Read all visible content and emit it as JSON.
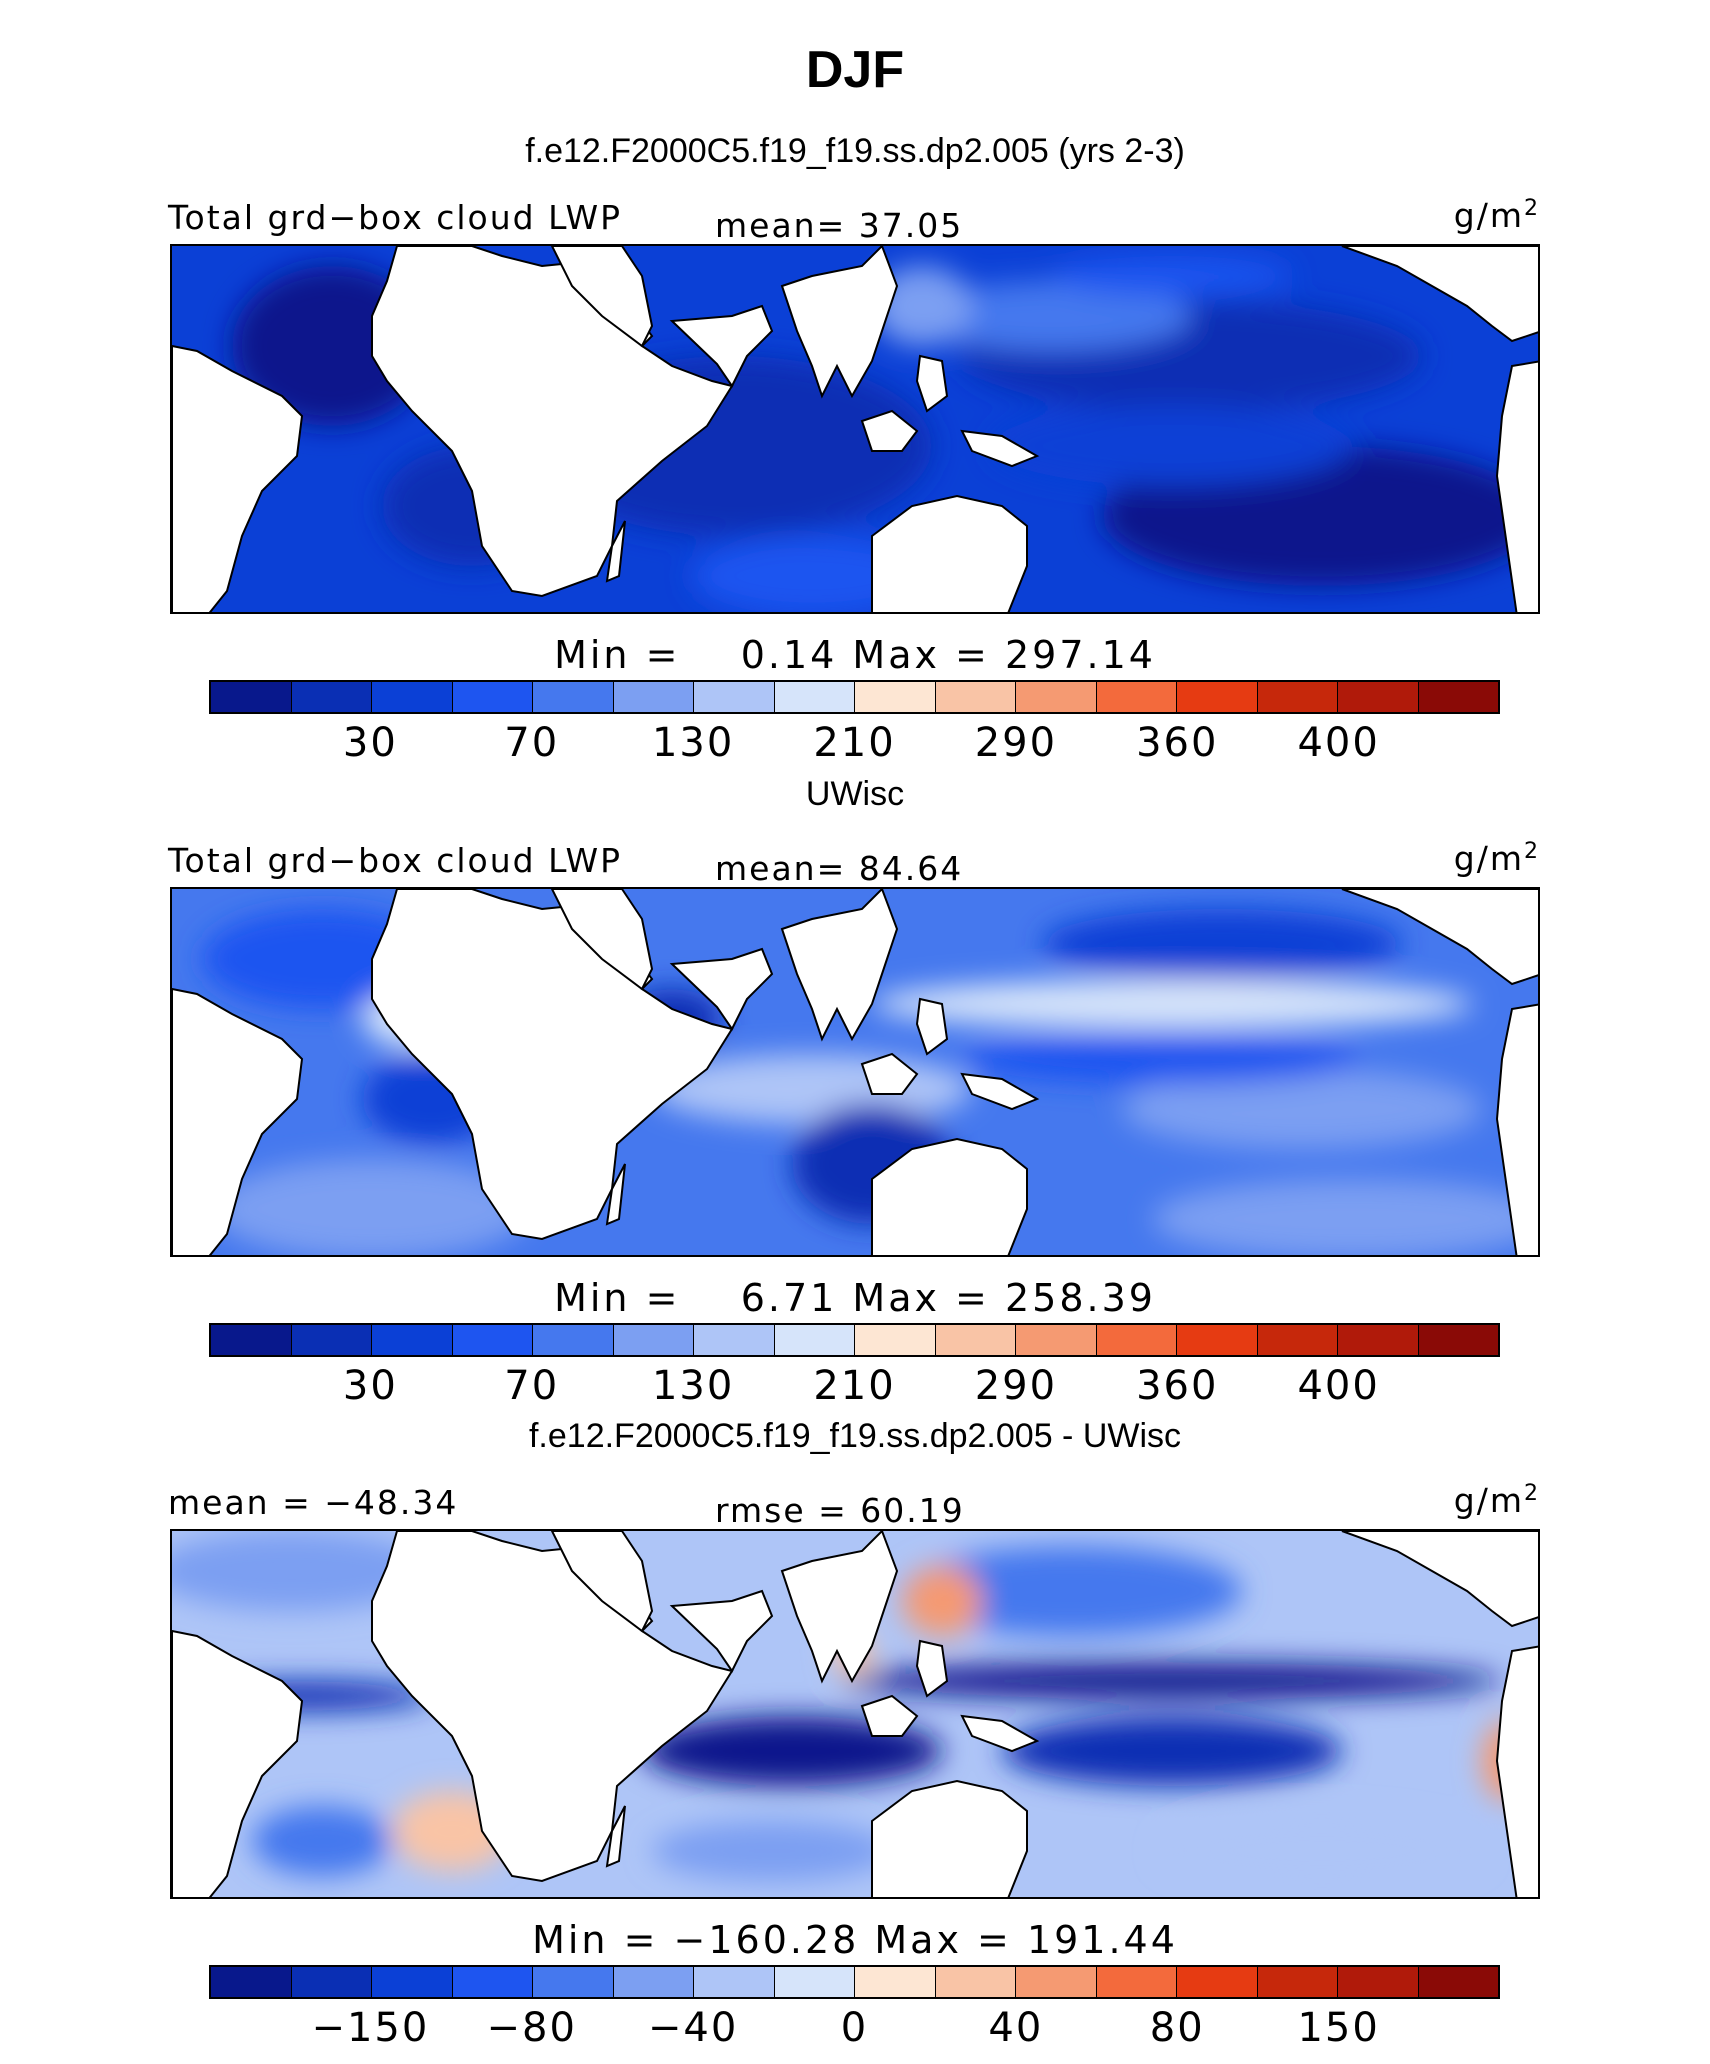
{
  "title": "DJF",
  "panels": [
    {
      "title": "f.e12.F2000C5.f19_f19.ss.dp2.005 (yrs 2-3)",
      "left_label": "Total grd−box cloud LWP",
      "center_label": "mean=  37.05",
      "units": "g/m",
      "units_sup": "2",
      "minmax": "Min =    0.14 Max = 297.14",
      "colorbar_ticks": [
        "30",
        "70",
        "130",
        "210",
        "290",
        "360",
        "400"
      ],
      "style": "model"
    },
    {
      "title": "UWisc",
      "left_label": "Total grd−box cloud LWP",
      "center_label": "mean=  84.64",
      "units": "g/m",
      "units_sup": "2",
      "minmax": "Min =    6.71 Max = 258.39",
      "colorbar_ticks": [
        "30",
        "70",
        "130",
        "210",
        "290",
        "360",
        "400"
      ],
      "style": "obs"
    },
    {
      "title": "f.e12.F2000C5.f19_f19.ss.dp2.005 - UWisc",
      "left_label": "mean = −48.34",
      "center_label": "rmse =  60.19",
      "units": "g/m",
      "units_sup": "2",
      "minmax": "Min = −160.28 Max = 191.44",
      "colorbar_ticks": [
        "−150",
        "−80",
        "−40",
        "0",
        "40",
        "80",
        "150"
      ],
      "style": "diff"
    }
  ],
  "colormap": [
    "#08188c",
    "#0a2fb4",
    "#0b40d6",
    "#1e55f0",
    "#4578ee",
    "#7c9ff2",
    "#aec5f7",
    "#d6e4fa",
    "#fde6d3",
    "#f9c4a6",
    "#f59a72",
    "#f36a3c",
    "#e63b12",
    "#c6280b",
    "#b01a0a",
    "#8a0a06"
  ],
  "map_colors": {
    "land": "#ffffff",
    "coast": "#000000"
  }
}
